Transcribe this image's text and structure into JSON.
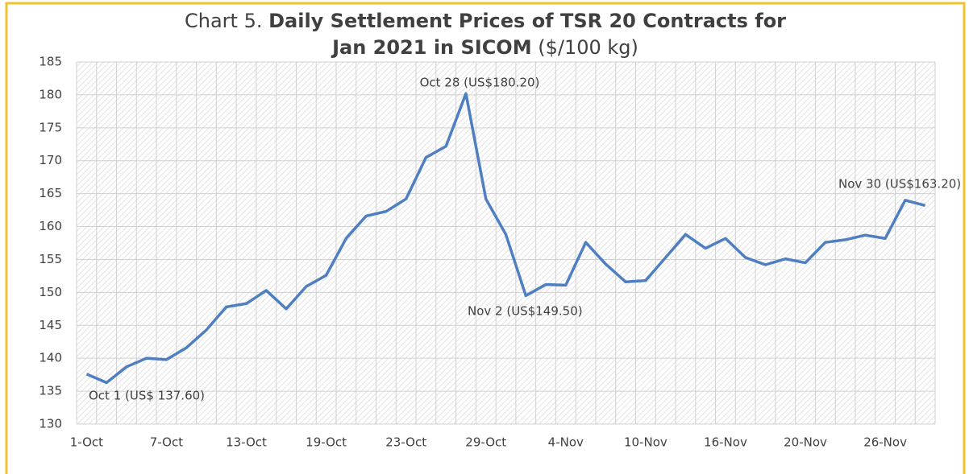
{
  "chart_data": {
    "type": "line",
    "title_parts": [
      "Chart 5.",
      "Daily Settlement Prices of TSR 20 Contracts for",
      "Jan 2021 in SICOM",
      "($/100 kg)"
    ],
    "categories": [
      "1-Oct",
      null,
      null,
      null,
      "7-Oct",
      null,
      null,
      null,
      "13-Oct",
      null,
      null,
      null,
      "19-Oct",
      null,
      null,
      null,
      "23-Oct",
      null,
      null,
      null,
      "29-Oct",
      null,
      null,
      null,
      "4-Nov",
      null,
      null,
      null,
      "10-Nov",
      null,
      null,
      null,
      "16-Nov",
      null,
      null,
      null,
      "20-Nov",
      null,
      null,
      null,
      "26-Nov",
      null,
      null
    ],
    "series": [
      {
        "name": "TSR 20",
        "color": "#4f7fc0",
        "values": [
          137.6,
          136.3,
          138.7,
          140.0,
          139.8,
          141.6,
          144.3,
          147.8,
          148.3,
          150.3,
          147.5,
          150.9,
          152.6,
          158.2,
          161.6,
          162.3,
          164.2,
          170.5,
          172.2,
          180.2,
          164.2,
          158.8,
          149.5,
          151.2,
          151.1,
          157.6,
          154.3,
          151.6,
          151.8,
          155.3,
          158.8,
          156.7,
          158.2,
          155.3,
          154.2,
          155.1,
          154.5,
          157.6,
          158.0,
          158.7,
          158.2,
          164.0,
          163.2
        ]
      }
    ],
    "ylim": [
      130,
      185
    ],
    "yticks": [
      130,
      135,
      140,
      145,
      150,
      155,
      160,
      165,
      170,
      175,
      180,
      185
    ],
    "grid": true,
    "annotations": [
      "Oct 1 (US$ 137.60)",
      "Oct 28 (US$180.20)",
      "Nov 2 (US$149.50)",
      "Nov 30 (US$163.20)"
    ]
  }
}
